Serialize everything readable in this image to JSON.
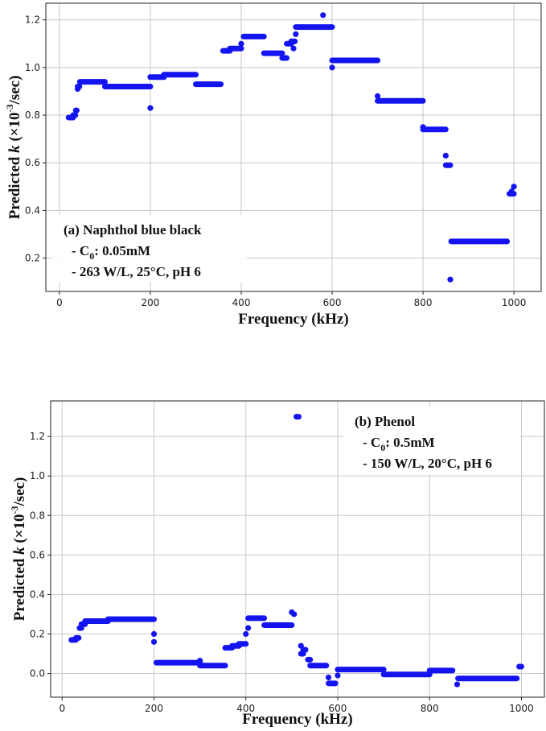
{
  "chart_data": [
    {
      "id": "a",
      "type": "scatter",
      "xlabel": "Frequency (kHz)",
      "ylabel": {
        "pre": "Predicted ",
        "italic": "k",
        "mid": " (×10",
        "sup": "-3",
        "post": "/sec)"
      },
      "xlim": [
        -30,
        1060
      ],
      "ylim": [
        0.06,
        1.27
      ],
      "xticks": [
        0,
        200,
        400,
        600,
        800,
        1000
      ],
      "xtick_labels": [
        "0",
        "200",
        "400",
        "600",
        "800",
        "1000"
      ],
      "yticks": [
        0.2,
        0.4,
        0.6,
        0.8,
        1.0,
        1.2
      ],
      "ytick_labels": [
        "0.2",
        "0.4",
        "0.6",
        "0.8",
        "1.0",
        "1.2"
      ],
      "grid": true,
      "legend_box": "bottom-left",
      "annotation": {
        "line1": "(a) Naphthol blue black",
        "line2_pre": "- C",
        "line2_sub": "0",
        "line2_post": ": 0.05mM",
        "line3": "- 263 W/L, 25°C, pH 6"
      },
      "segments": [
        {
          "x0": 20,
          "x1": 30,
          "y": 0.79
        },
        {
          "x0": 30,
          "x1": 35,
          "y": 0.8
        },
        {
          "x0": 36,
          "x1": 38,
          "y": 0.82
        },
        {
          "x0": 40,
          "x1": 44,
          "y": 0.92
        },
        {
          "x0": 45,
          "x1": 100,
          "y": 0.94
        },
        {
          "x0": 100,
          "x1": 200,
          "y": 0.92
        },
        {
          "x0": 205,
          "x1": 230,
          "y": 0.96
        },
        {
          "x0": 230,
          "x1": 300,
          "y": 0.97
        },
        {
          "x0": 300,
          "x1": 355,
          "y": 0.93
        },
        {
          "x0": 360,
          "x1": 375,
          "y": 1.07
        },
        {
          "x0": 375,
          "x1": 400,
          "y": 1.08
        },
        {
          "x0": 405,
          "x1": 450,
          "y": 1.13
        },
        {
          "x0": 450,
          "x1": 490,
          "y": 1.06
        },
        {
          "x0": 490,
          "x1": 500,
          "y": 1.04
        },
        {
          "x0": 500,
          "x1": 510,
          "y": 1.1
        },
        {
          "x0": 510,
          "x1": 518,
          "y": 1.11
        },
        {
          "x0": 520,
          "x1": 600,
          "y": 1.17
        },
        {
          "x0": 600,
          "x1": 700,
          "y": 1.03
        },
        {
          "x0": 700,
          "x1": 800,
          "y": 0.86
        },
        {
          "x0": 800,
          "x1": 850,
          "y": 0.74
        },
        {
          "x0": 850,
          "x1": 860,
          "y": 0.59
        },
        {
          "x0": 862,
          "x1": 985,
          "y": 0.27
        },
        {
          "x0": 990,
          "x1": 1000,
          "y": 0.47
        }
      ],
      "points": [
        {
          "x": 40,
          "y": 0.91
        },
        {
          "x": 200,
          "y": 0.83
        },
        {
          "x": 200,
          "y": 0.96
        },
        {
          "x": 400,
          "y": 1.1
        },
        {
          "x": 515,
          "y": 1.08
        },
        {
          "x": 520,
          "y": 1.14
        },
        {
          "x": 580,
          "y": 1.22
        },
        {
          "x": 600,
          "y": 1.0
        },
        {
          "x": 700,
          "y": 0.88
        },
        {
          "x": 800,
          "y": 0.75
        },
        {
          "x": 850,
          "y": 0.63
        },
        {
          "x": 860,
          "y": 0.11
        },
        {
          "x": 1000,
          "y": 0.5
        },
        {
          "x": 995,
          "y": 0.48
        }
      ]
    },
    {
      "id": "b",
      "type": "scatter",
      "xlabel": "Frequency (kHz)",
      "ylabel": {
        "pre": "Predicted ",
        "italic": "k",
        "mid": " (×10",
        "sup": "-3",
        "post": "/sec)"
      },
      "xlim": [
        -25,
        1050
      ],
      "ylim": [
        -0.12,
        1.38
      ],
      "xticks": [
        0,
        200,
        400,
        600,
        800,
        1000
      ],
      "xtick_labels": [
        "0",
        "200",
        "400",
        "600",
        "800",
        "1000"
      ],
      "yticks": [
        0.0,
        0.2,
        0.4,
        0.6,
        0.8,
        1.0,
        1.2
      ],
      "ytick_labels": [
        "0.0",
        "0.2",
        "0.4",
        "0.6",
        "0.8",
        "1.0",
        "1.2"
      ],
      "grid": true,
      "legend_box": "top-right",
      "annotation": {
        "line1": "(b) Phenol",
        "line2_pre": "- C",
        "line2_sub": "0",
        "line2_post": ": 0.5mM",
        "line3": "- 150 W/L, 20°C, pH 6"
      },
      "segments": [
        {
          "x0": 20,
          "x1": 30,
          "y": 0.17
        },
        {
          "x0": 30,
          "x1": 36,
          "y": 0.18
        },
        {
          "x0": 38,
          "x1": 42,
          "y": 0.23
        },
        {
          "x0": 42,
          "x1": 50,
          "y": 0.25
        },
        {
          "x0": 50,
          "x1": 100,
          "y": 0.265
        },
        {
          "x0": 100,
          "x1": 200,
          "y": 0.275
        },
        {
          "x0": 205,
          "x1": 300,
          "y": 0.055
        },
        {
          "x0": 300,
          "x1": 355,
          "y": 0.04
        },
        {
          "x0": 355,
          "x1": 370,
          "y": 0.13
        },
        {
          "x0": 370,
          "x1": 385,
          "y": 0.14
        },
        {
          "x0": 385,
          "x1": 400,
          "y": 0.15
        },
        {
          "x0": 405,
          "x1": 440,
          "y": 0.28
        },
        {
          "x0": 440,
          "x1": 500,
          "y": 0.245
        },
        {
          "x0": 510,
          "x1": 515,
          "y": 1.3
        },
        {
          "x0": 520,
          "x1": 525,
          "y": 0.1
        },
        {
          "x0": 525,
          "x1": 530,
          "y": 0.12
        },
        {
          "x0": 535,
          "x1": 540,
          "y": 0.07
        },
        {
          "x0": 540,
          "x1": 575,
          "y": 0.04
        },
        {
          "x0": 580,
          "x1": 595,
          "y": -0.05
        },
        {
          "x0": 600,
          "x1": 700,
          "y": 0.02
        },
        {
          "x0": 700,
          "x1": 800,
          "y": -0.005
        },
        {
          "x0": 800,
          "x1": 850,
          "y": 0.015
        },
        {
          "x0": 862,
          "x1": 990,
          "y": -0.025
        },
        {
          "x0": 995,
          "x1": 1000,
          "y": 0.035
        }
      ],
      "points": [
        {
          "x": 200,
          "y": 0.2
        },
        {
          "x": 200,
          "y": 0.16
        },
        {
          "x": 300,
          "y": 0.065
        },
        {
          "x": 400,
          "y": 0.2
        },
        {
          "x": 405,
          "y": 0.23
        },
        {
          "x": 500,
          "y": 0.31
        },
        {
          "x": 505,
          "y": 0.3
        },
        {
          "x": 520,
          "y": 0.14
        },
        {
          "x": 580,
          "y": -0.02
        },
        {
          "x": 600,
          "y": -0.01
        },
        {
          "x": 860,
          "y": -0.055
        }
      ]
    }
  ],
  "colors": {
    "marker": "#1414f0",
    "grid": "#c8c8c8",
    "frame": "#222222"
  }
}
